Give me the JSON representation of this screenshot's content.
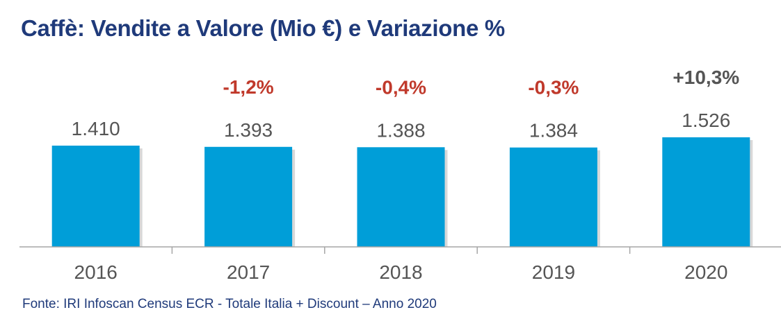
{
  "chart_data": {
    "type": "bar",
    "title": "Caffè: Vendite a Valore (Mio €) e Variazione %",
    "categories": [
      "2016",
      "2017",
      "2018",
      "2019",
      "2020"
    ],
    "values": [
      1410,
      1393,
      1388,
      1384,
      1526
    ],
    "value_labels": [
      "1.410",
      "1.393",
      "1.388",
      "1.384",
      "1.526"
    ],
    "change_labels": [
      "",
      "-1,2%",
      "-0,4%",
      "-0,3%",
      "+10,3%"
    ],
    "xlabel": "",
    "ylabel": "",
    "ylim": [
      0,
      1526
    ],
    "grid": false,
    "source": "Fonte: IRI Infoscan Census ECR - Totale Italia + Discount – Anno 2020"
  },
  "colors": {
    "bar": "#009ed8",
    "bar_shadow": "#c8c8c8",
    "title": "#1f3a7a",
    "value_label": "#555555",
    "tick_label": "#555555",
    "change_negative": "#c0392b",
    "change_positive": "#555555",
    "axis": "#a6a6a6"
  }
}
